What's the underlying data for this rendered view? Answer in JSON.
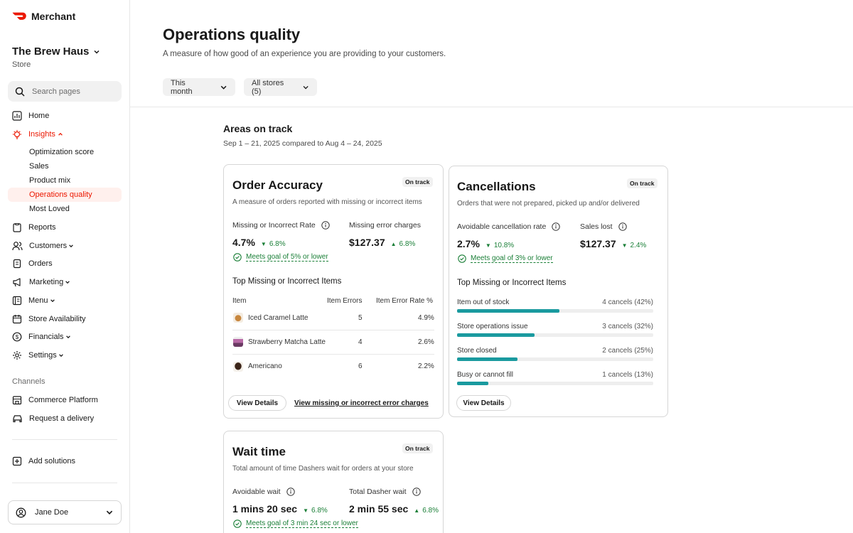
{
  "brand": {
    "name": "Merchant"
  },
  "store": {
    "name": "The Brew Haus",
    "sub": "Store"
  },
  "search": {
    "placeholder": "Search pages"
  },
  "nav": {
    "home": "Home",
    "insights": "Insights",
    "insights_sub": [
      "Optimization score",
      "Sales",
      "Product mix",
      "Operations quality",
      "Most Loved"
    ],
    "reports": "Reports",
    "customers": "Customers",
    "orders": "Orders",
    "marketing": "Marketing",
    "menu": "Menu",
    "store_availability": "Store Availability",
    "financials": "Financials",
    "settings": "Settings",
    "channels_label": "Channels",
    "commerce_platform": "Commerce Platform",
    "request_delivery": "Request a delivery",
    "add_solutions": "Add solutions"
  },
  "user": {
    "name": "Jane Doe"
  },
  "page": {
    "title": "Operations quality",
    "subtitle": "A measure of how good of an experience you are providing to your customers.",
    "filters": {
      "period": "This month",
      "stores": "All stores (5)"
    }
  },
  "section": {
    "title": "Areas on track",
    "date": "Sep 1 – 21, 2025 compared to Aug 4 – 24, 2025"
  },
  "accuracy": {
    "title": "Order Accuracy",
    "badge": "On track",
    "desc": "A measure of orders reported with missing or incorrect items",
    "m1_label": "Missing or Incorrect Rate",
    "m1_value": "4.7%",
    "m1_delta": "6.8%",
    "m2_label": "Missing error charges",
    "m2_value": "$127.37",
    "m2_delta": "6.8%",
    "goal": "Meets goal of 5% or lower",
    "table_title": "Top Missing or Incorrect Items",
    "headers": [
      "Item",
      "Item Errors",
      "Item Error Rate %"
    ],
    "rows": [
      {
        "name": "Iced Caramel Latte",
        "errors": "5",
        "rate": "4.9%"
      },
      {
        "name": "Strawberry Matcha Latte",
        "errors": "4",
        "rate": "2.6%"
      },
      {
        "name": "Americano",
        "errors": "6",
        "rate": "2.2%"
      }
    ],
    "btn": "View Details",
    "link": "View missing or incorrect error charges"
  },
  "cancellations": {
    "title": "Cancellations",
    "badge": "On track",
    "desc": "Orders that were not prepared, picked up and/or delivered",
    "m1_label": "Avoidable cancellation rate",
    "m1_value": "2.7%",
    "m1_delta": "10.8%",
    "m2_label": "Sales lost",
    "m2_value": "$127.37",
    "m2_delta": "2.4%",
    "goal": "Meets goal of 3% or lower",
    "list_title": "Top Missing or Incorrect Items",
    "bars": [
      {
        "label": "Item out of stock",
        "value": "4 cancels (42%)",
        "pct": 0.42
      },
      {
        "label": "Store operations issue",
        "value": "3 cancels (32%)",
        "pct": 0.32
      },
      {
        "label": "Store closed",
        "value": "2 cancels (25%)",
        "pct": 0.25
      },
      {
        "label": "Busy or cannot fill",
        "value": "1 cancels (13%)",
        "pct": 0.13
      }
    ],
    "btn": "View Details"
  },
  "wait": {
    "title": "Wait time",
    "badge": "On track",
    "desc": "Total amount of time Dashers wait for orders at your store",
    "m1_label": "Avoidable wait",
    "m1_value": "1 mins 20 sec",
    "m1_delta": "6.8%",
    "m2_label": "Total Dasher wait",
    "m2_value": "2 min 55 sec",
    "m2_delta": "6.8%",
    "goal": "Meets goal of 3 min 24 sec or lower"
  },
  "colors": {
    "accent": "#eb1700",
    "positive": "#1a7f37",
    "bar": "#1a9a9f"
  }
}
